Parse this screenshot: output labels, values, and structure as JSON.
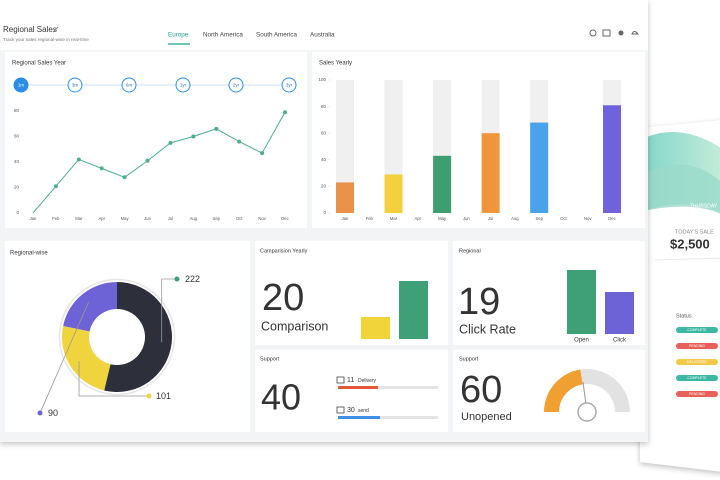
{
  "header": {
    "title": "Regional Sales",
    "subtitle": "Track your sales regional-wise in real-time",
    "tabs": [
      "Europe",
      "North America",
      "South America",
      "Australia"
    ],
    "active_tab": 0
  },
  "panels": {
    "line": {
      "title": "Regional Sales Year",
      "ranges": [
        "1m",
        "3m",
        "6m",
        "1yr",
        "2yr",
        "3yr"
      ],
      "active_range": 0,
      "chart_data": {
        "type": "line",
        "categories": [
          "Jan",
          "Feb",
          "Mar",
          "Apr",
          "May",
          "Jun",
          "Jul",
          "Aug",
          "Sep",
          "Oct",
          "Nov",
          "Dec"
        ],
        "values": [
          0,
          21,
          42,
          35,
          28,
          41,
          55,
          60,
          66,
          56,
          47,
          79
        ],
        "color": "#4caf8a",
        "ylim": [
          0,
          80
        ],
        "yticks": [
          0,
          20,
          40,
          60,
          80
        ]
      }
    },
    "bars": {
      "title": "Sales Yearly",
      "chart_data": {
        "type": "bar",
        "categories": [
          "Jan",
          "Feb",
          "Mar",
          "Apr",
          "May",
          "Jun",
          "Jul",
          "Aug",
          "Sep",
          "Oct",
          "Nov",
          "Dec"
        ],
        "values": [
          23,
          null,
          29,
          null,
          43,
          null,
          60,
          null,
          68,
          null,
          null,
          81
        ],
        "colors": [
          "#e8924a",
          null,
          "#f2d13c",
          null,
          "#3d9e72",
          null,
          "#f0963a",
          null,
          "#4aa3ea",
          null,
          null,
          "#7061dc"
        ],
        "track_color": "#f0f0f0",
        "ylim": [
          0,
          100
        ],
        "yticks": [
          0,
          20,
          40,
          60,
          80,
          100
        ]
      }
    },
    "donut": {
      "title": "Regional-wise",
      "chart_data": {
        "type": "pie",
        "values": [
          222,
          101,
          90
        ],
        "colors": [
          "#2d2f3b",
          "#efd43e",
          "#6e63d6"
        ],
        "dot_colors": [
          "#3d9e72",
          "#efd43e",
          "#6e63d6"
        ]
      }
    },
    "comparison": {
      "title": "Camparision Yearly",
      "value": 20,
      "label": "Comparison",
      "bars": [
        {
          "color": "#f0d43a",
          "value": 22
        },
        {
          "color": "#3f9f77",
          "value": 58
        }
      ]
    },
    "regional": {
      "title": "Regional",
      "value": 19,
      "label": "Click Rate",
      "bars": [
        {
          "name": "Open",
          "color": "#3f9f77",
          "value": 64
        },
        {
          "name": "Click",
          "color": "#6e63d6",
          "value": 42
        }
      ]
    },
    "support1": {
      "title": "Support",
      "value": 40,
      "rows": [
        {
          "value": 11,
          "label": "Delivery",
          "color": "#e3583a",
          "fill_percent": 40
        },
        {
          "value": 30,
          "label": "send",
          "color": "#3f8ee8",
          "fill_percent": 42
        }
      ]
    },
    "support2": {
      "title": "Support",
      "value": 60,
      "label": "Unopened",
      "gauge_fill_percent": 45,
      "color": "#f0a030"
    }
  },
  "backdrop": {
    "day": "THURSDAY",
    "caption": "TODAY'S SALE",
    "amount": "$2,500",
    "status_title": "Status",
    "statuses": [
      {
        "label": "COMPLETE",
        "color": "#3cb8a4"
      },
      {
        "label": "PENDING",
        "color": "#e8605a"
      },
      {
        "label": "DELIVERED",
        "color": "#f2c84b"
      },
      {
        "label": "COMPLETE",
        "color": "#3cb8a4"
      },
      {
        "label": "PENDING",
        "color": "#e8605a"
      }
    ]
  }
}
